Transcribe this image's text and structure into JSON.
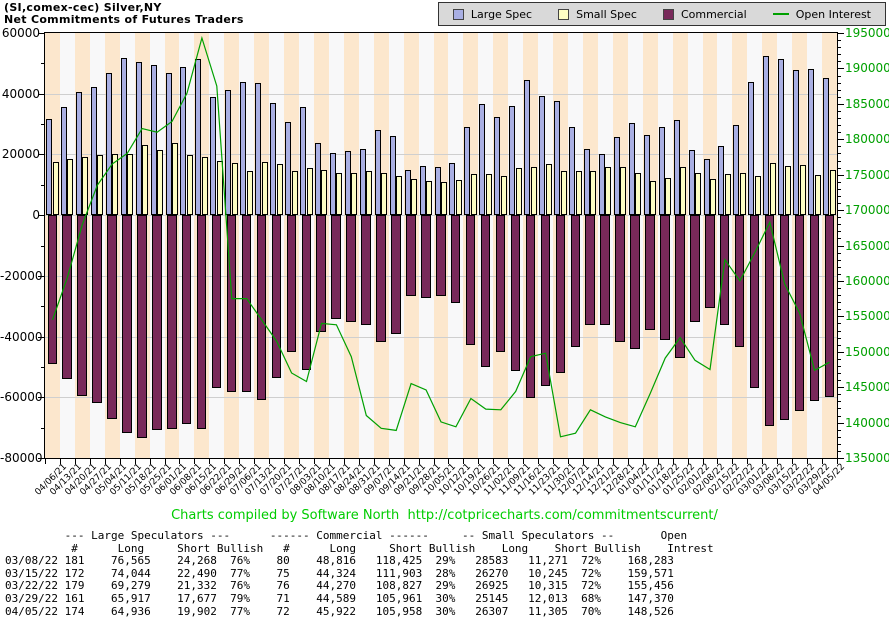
{
  "title": {
    "line1": "(SI,comex-cec) Silver,NY",
    "line2": "Net Commitments of Futures Traders"
  },
  "footer": {
    "text": "Charts compiled by Software North  http://cotpricecharts.com/commitmentscurrent/"
  },
  "colors": {
    "large_spec": "#A9AFE3",
    "small_spec": "#FDFDC4",
    "commercial": "#78295A",
    "open_interest": "#00A000",
    "stripe_peach": "#FCE7CD",
    "stripe_white": "#F8F8F9",
    "right_axis_text": "#00A000",
    "footer_green": "#00CC00"
  },
  "chart_data": {
    "type": "bar",
    "title": "Net Commitments of Futures Traders",
    "grid": "horizontal-major",
    "legend_position": "top-right",
    "left_axis": {
      "min": -80000,
      "max": 60000,
      "major": 20000,
      "minor": 10000
    },
    "right_axis": {
      "min": 135000,
      "max": 195000,
      "major": 5000,
      "minor": 1000
    },
    "categories": [
      "04/06/21",
      "04/13/21",
      "04/20/21",
      "04/27/21",
      "05/04/21",
      "05/11/21",
      "05/18/21",
      "05/25/21",
      "06/01/21",
      "06/08/21",
      "06/15/21",
      "06/22/21",
      "06/29/21",
      "07/06/21",
      "07/13/21",
      "07/20/21",
      "07/27/21",
      "08/03/21",
      "08/10/21",
      "08/17/21",
      "08/24/21",
      "08/31/21",
      "09/07/21",
      "09/14/21",
      "09/21/21",
      "09/28/21",
      "10/05/21",
      "10/12/21",
      "10/19/21",
      "10/26/21",
      "11/02/21",
      "11/09/21",
      "11/16/21",
      "11/23/21",
      "11/30/21",
      "12/07/21",
      "12/14/21",
      "12/21/21",
      "12/28/21",
      "01/04/22",
      "01/11/22",
      "01/18/22",
      "01/25/22",
      "02/01/22",
      "02/08/22",
      "02/15/22",
      "02/22/22",
      "03/01/22",
      "03/08/22",
      "03/15/22",
      "03/22/22",
      "03/29/22",
      "04/05/22"
    ],
    "series": [
      {
        "name": "Large Spec",
        "kind": "bar",
        "axis": "left",
        "color": "#A9AFE3",
        "values": [
          31600,
          35500,
          40700,
          42100,
          46900,
          51800,
          50300,
          49600,
          46900,
          48900,
          51300,
          39000,
          41100,
          43700,
          43400,
          37000,
          30700,
          35500,
          23700,
          20400,
          21200,
          21700,
          27900,
          26100,
          14900,
          16200,
          15900,
          17200,
          29200,
          36600,
          32300,
          36100,
          44400,
          39300,
          37500,
          28900,
          21700,
          20100,
          25800,
          30300,
          26500,
          28900,
          31200,
          21400,
          18500,
          22700,
          29600,
          43900,
          52297,
          51554,
          47947,
          48240,
          45034
        ]
      },
      {
        "name": "Small Spec",
        "kind": "bar",
        "axis": "left",
        "color": "#FDFDC4",
        "values": [
          17500,
          18500,
          19000,
          19900,
          20200,
          20100,
          23200,
          21300,
          23700,
          19900,
          19300,
          17900,
          17200,
          14400,
          17400,
          16800,
          14400,
          15500,
          14800,
          13800,
          14000,
          14500,
          13800,
          12900,
          11900,
          11200,
          10900,
          11600,
          13600,
          13500,
          12900,
          15400,
          16000,
          17000,
          14500,
          14400,
          14500,
          16000,
          16000,
          13800,
          11300,
          12200,
          15900,
          13800,
          12000,
          13400,
          14000,
          13000,
          17312,
          16025,
          16610,
          13132,
          15002
        ]
      },
      {
        "name": "Commercial",
        "kind": "bar",
        "axis": "left",
        "color": "#78295A",
        "values": [
          -49100,
          -54000,
          -59700,
          -62000,
          -67100,
          -71900,
          -73500,
          -70900,
          -70600,
          -68800,
          -70600,
          -56900,
          -58300,
          -58100,
          -60800,
          -53800,
          -45100,
          -51000,
          -38500,
          -34200,
          -35200,
          -36200,
          -41700,
          -39000,
          -26800,
          -27400,
          -26800,
          -28800,
          -42800,
          -50100,
          -45200,
          -51500,
          -60400,
          -56300,
          -52000,
          -43300,
          -36200,
          -36100,
          -41800,
          -44100,
          -37800,
          -41100,
          -47100,
          -35200,
          -30500,
          -36100,
          -43600,
          -56900,
          -69609,
          -67579,
          -64557,
          -61372,
          -60036
        ]
      },
      {
        "name": "Open Interest",
        "kind": "line",
        "axis": "right",
        "color": "#00A000",
        "values": [
          154500,
          160500,
          168000,
          173500,
          176500,
          178000,
          181500,
          181000,
          182500,
          186500,
          194300,
          187500,
          157500,
          157500,
          154500,
          151500,
          147000,
          145800,
          154000,
          153800,
          149300,
          141000,
          139200,
          138900,
          145500,
          144600,
          140100,
          139400,
          143400,
          141900,
          141800,
          144400,
          149300,
          149800,
          138000,
          138500,
          141800,
          140800,
          140000,
          139400,
          144100,
          149100,
          152000,
          148800,
          147500,
          163000,
          160000,
          164000,
          168283,
          159571,
          155456,
          147370,
          148526
        ]
      }
    ]
  },
  "table": {
    "header_line1": "         --- Large Speculators ---      ------ Commercial ------     -- Small Speculators --       Open",
    "header_line2": "          #      Long     Short Bullish   #      Long     Short Bullish    Long    Short Bullish    Intrest",
    "header_groups": [
      "--- Large Speculators ---",
      "------ Commercial ------",
      "-- Small Speculators --",
      "Open"
    ],
    "columns": [
      "#",
      "Long",
      "Short",
      "Bullish",
      "#",
      "Long",
      "Short",
      "Bullish",
      "Long",
      "Short",
      "Bullish",
      "Intrest"
    ],
    "rows": [
      [
        "03/08/22",
        "181",
        "76,565",
        "24,268",
        "76%",
        "80",
        "48,816",
        "118,425",
        "29%",
        "28583",
        "11,271",
        "72%",
        "168,283"
      ],
      [
        "03/15/22",
        "172",
        "74,044",
        "22,490",
        "77%",
        "75",
        "44,324",
        "111,903",
        "28%",
        "26270",
        "10,245",
        "72%",
        "159,571"
      ],
      [
        "03/22/22",
        "179",
        "69,279",
        "21,332",
        "76%",
        "76",
        "44,270",
        "108,827",
        "29%",
        "26925",
        "10,315",
        "72%",
        "155,456"
      ],
      [
        "03/29/22",
        "161",
        "65,917",
        "17,677",
        "79%",
        "71",
        "44,589",
        "105,961",
        "30%",
        "25145",
        "12,013",
        "68%",
        "147,370"
      ],
      [
        "04/05/22",
        "174",
        "64,936",
        "19,902",
        "77%",
        "72",
        "45,922",
        "105,958",
        "30%",
        "26307",
        "11,305",
        "70%",
        "148,526"
      ]
    ]
  }
}
